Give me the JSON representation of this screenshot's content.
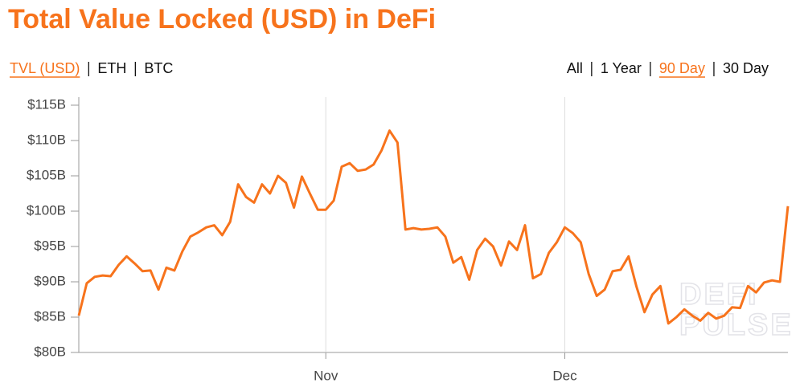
{
  "chart_data": {
    "type": "line",
    "title": "Total Value Locked (USD) in DeFi",
    "tabs": {
      "metric": [
        "TVL (USD)",
        "ETH",
        "BTC"
      ],
      "range": [
        "All",
        "1 Year",
        "90 Day",
        "30 Day"
      ],
      "active_metric": 0,
      "active_range": 2
    },
    "watermark": [
      "DEFI",
      "PULSE"
    ],
    "color": "#f7731c",
    "categories": [
      null,
      null,
      null,
      null,
      null,
      null,
      null,
      null,
      null,
      null,
      null,
      null,
      null,
      null,
      null,
      null,
      null,
      null,
      null,
      null,
      null,
      null,
      null,
      null,
      null,
      null,
      null,
      null,
      null,
      null,
      null,
      "Nov",
      null,
      null,
      null,
      null,
      null,
      null,
      null,
      null,
      null,
      null,
      null,
      null,
      null,
      null,
      null,
      null,
      null,
      null,
      null,
      null,
      null,
      null,
      null,
      null,
      null,
      null,
      null,
      null,
      null,
      "Dec",
      null,
      null,
      null,
      null,
      null,
      null,
      null,
      null,
      null,
      null,
      null,
      null,
      null,
      null,
      null,
      null,
      null,
      null,
      null,
      null,
      null,
      null,
      null,
      null,
      null,
      null,
      null,
      null
    ],
    "values": [
      85.2,
      89.8,
      90.7,
      90.9,
      90.8,
      92.4,
      93.6,
      92.6,
      91.5,
      91.6,
      88.9,
      92.0,
      91.6,
      94.3,
      96.4,
      97.0,
      97.7,
      98.0,
      96.6,
      98.5,
      103.8,
      102.0,
      101.2,
      103.8,
      102.5,
      105.0,
      104.0,
      100.5,
      104.9,
      102.5,
      100.2,
      100.2,
      101.5,
      106.3,
      106.8,
      105.7,
      105.9,
      106.6,
      108.6,
      111.4,
      109.7,
      97.4,
      97.6,
      97.4,
      97.5,
      97.7,
      96.4,
      92.7,
      93.5,
      90.3,
      94.5,
      96.1,
      95.0,
      92.3,
      95.7,
      94.5,
      98.0,
      90.5,
      91.1,
      94.1,
      95.6,
      97.7,
      96.9,
      95.6,
      91.1,
      88.0,
      88.9,
      91.5,
      91.7,
      93.6,
      89.3,
      85.7,
      88.2,
      89.4,
      84.1,
      85.0,
      86.1,
      85.2,
      84.5,
      85.6,
      84.8,
      85.2,
      86.4,
      86.3,
      89.4,
      88.5,
      89.9,
      90.2,
      90.0,
      100.7
    ],
    "ylim": [
      80,
      115
    ],
    "yticks": [
      {
        "value": 80,
        "label": "$80B"
      },
      {
        "value": 85,
        "label": "$85B"
      },
      {
        "value": 90,
        "label": "$90B"
      },
      {
        "value": 95,
        "label": "$95B"
      },
      {
        "value": 100,
        "label": "$100B"
      },
      {
        "value": 105,
        "label": "$105B"
      },
      {
        "value": 110,
        "label": "$110B"
      },
      {
        "value": 115,
        "label": "$115B"
      }
    ],
    "grid": true
  }
}
